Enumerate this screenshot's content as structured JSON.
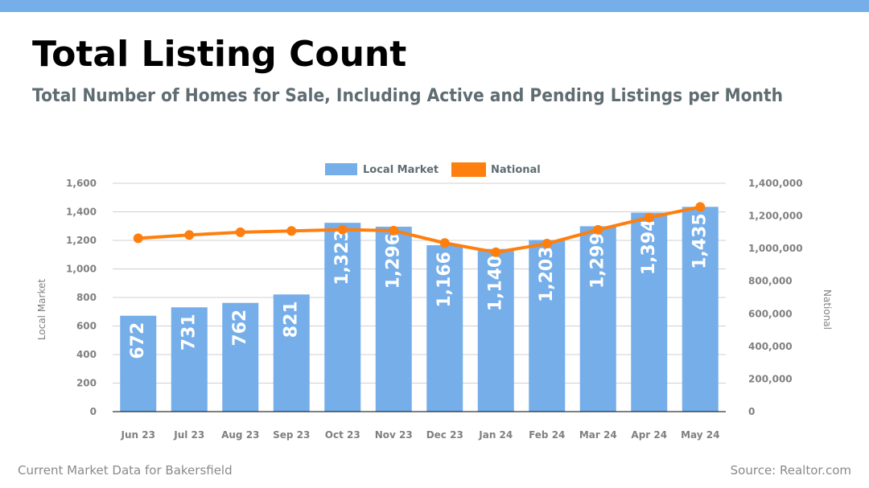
{
  "header": {
    "title": "Total Listing Count",
    "subtitle": "Total Number of Homes for Sale, Including Active and Pending Listings per Month"
  },
  "footer": {
    "left_text": "Current Market Data for Bakersfield",
    "right_text": "Source: Realtor.com"
  },
  "colors": {
    "accent_bar": "#75aee9",
    "local_market": "#75aee9",
    "national": "#ff7f0e",
    "axis_text": "#808080",
    "legend_text": "#5f6d73"
  },
  "chart_data": {
    "type": "bar",
    "categories": [
      "Jun 23",
      "Jul 23",
      "Aug 23",
      "Sep 23",
      "Oct 23",
      "Nov 23",
      "Dec 23",
      "Jan 24",
      "Feb 24",
      "Mar 24",
      "Apr 24",
      "May 24"
    ],
    "series": [
      {
        "name": "Local Market",
        "type": "bar",
        "axis": "left",
        "values": [
          672,
          731,
          762,
          821,
          1323,
          1296,
          1166,
          1140,
          1203,
          1299,
          1394,
          1435
        ],
        "data_labels": [
          "672",
          "731",
          "762",
          "821",
          "1,323",
          "1,296",
          "1,166",
          "1,140",
          "1,203",
          "1,299",
          "1,394",
          "1,435"
        ]
      },
      {
        "name": "National",
        "type": "line",
        "axis": "right",
        "values": [
          1063000,
          1083000,
          1100000,
          1108000,
          1116000,
          1110000,
          1034000,
          977000,
          1030000,
          1115000,
          1190000,
          1255000
        ]
      }
    ],
    "ylabel_left": "Local Market",
    "ylabel_right": "National",
    "ylim_left": [
      0,
      1600
    ],
    "ylim_right": [
      0,
      1400000
    ],
    "yticks_left": [
      "0",
      "200",
      "400",
      "600",
      "800",
      "1,000",
      "1,200",
      "1,400",
      "1,600"
    ],
    "yticks_right": [
      "0",
      "200,000",
      "400,000",
      "600,000",
      "800,000",
      "1,000,000",
      "1,200,000",
      "1,400,000"
    ],
    "grid": true,
    "legend_position": "top-center"
  }
}
